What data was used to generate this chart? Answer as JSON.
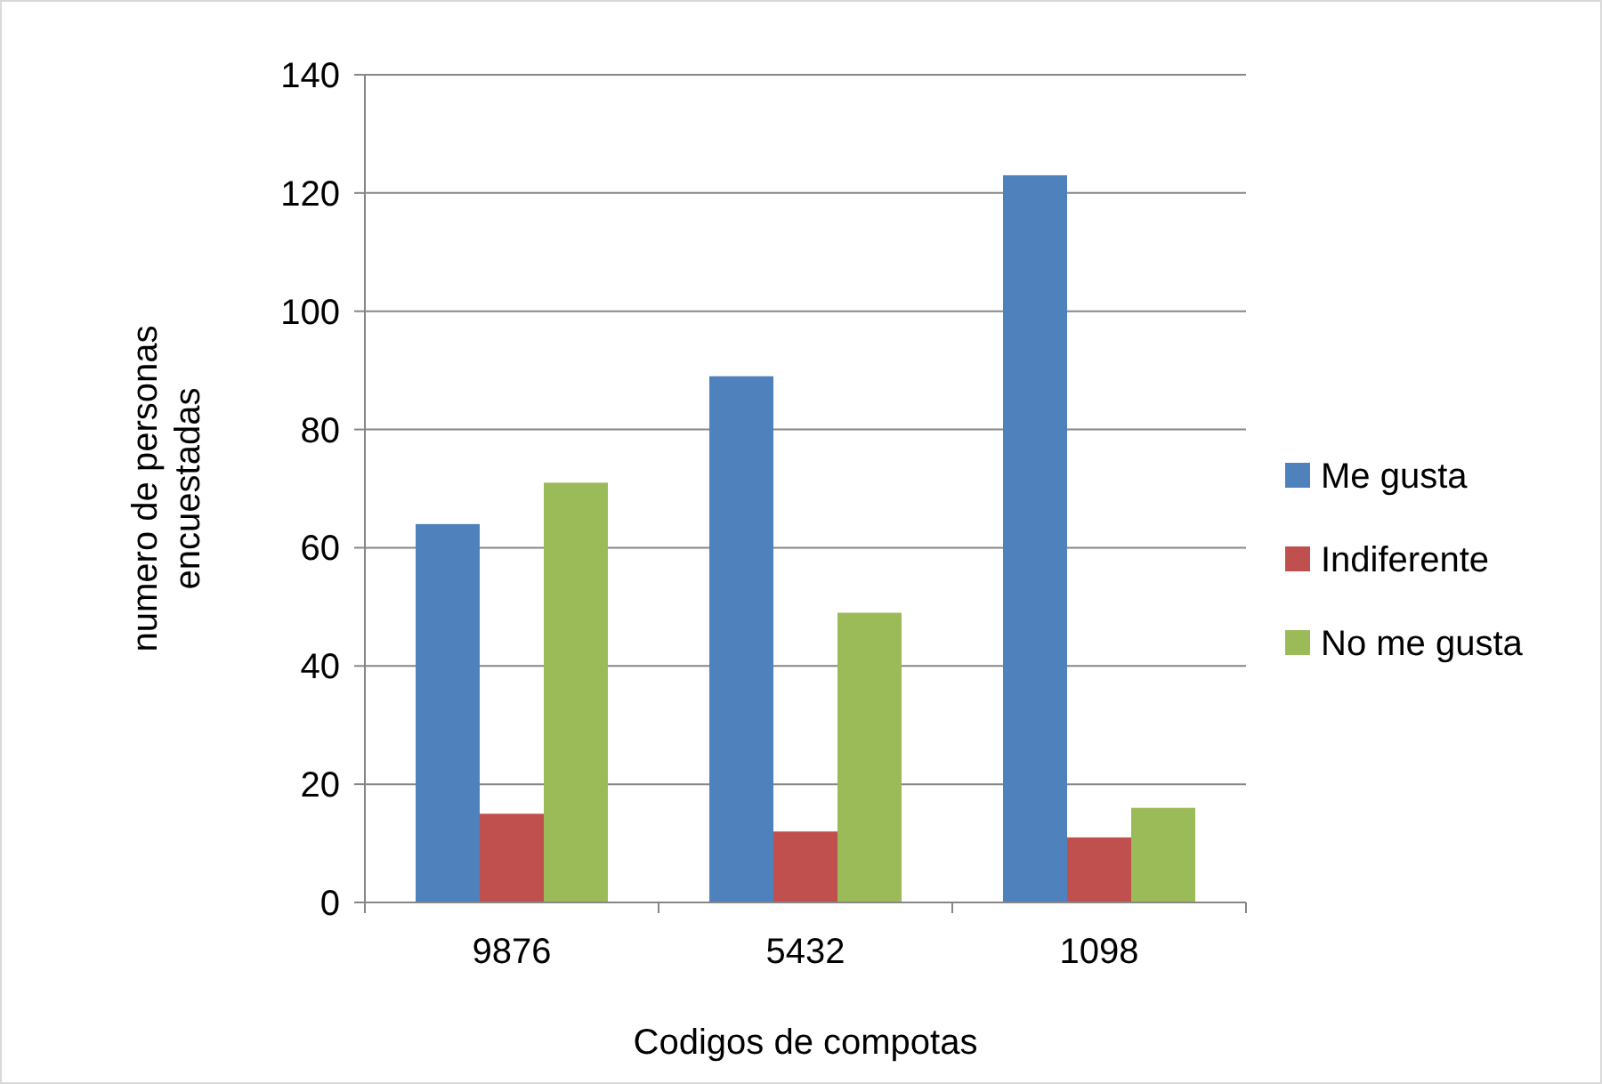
{
  "chart_data": {
    "type": "bar",
    "xlabel": "Codigos de compotas",
    "ylabel": "numero de personas encuestadas",
    "categories": [
      "9876",
      "5432",
      "1098"
    ],
    "series": [
      {
        "name": "Me gusta",
        "color": "#4f81bd",
        "values": [
          64,
          89,
          123
        ]
      },
      {
        "name": "Indiferente",
        "color": "#c0504d",
        "values": [
          15,
          12,
          11
        ]
      },
      {
        "name": "No me gusta",
        "color": "#9bbb59",
        "values": [
          71,
          49,
          16
        ]
      }
    ],
    "ylim": [
      0,
      140
    ],
    "yticks": [
      0,
      20,
      40,
      60,
      80,
      100,
      120,
      140
    ],
    "grid": "y",
    "legend": "right"
  }
}
